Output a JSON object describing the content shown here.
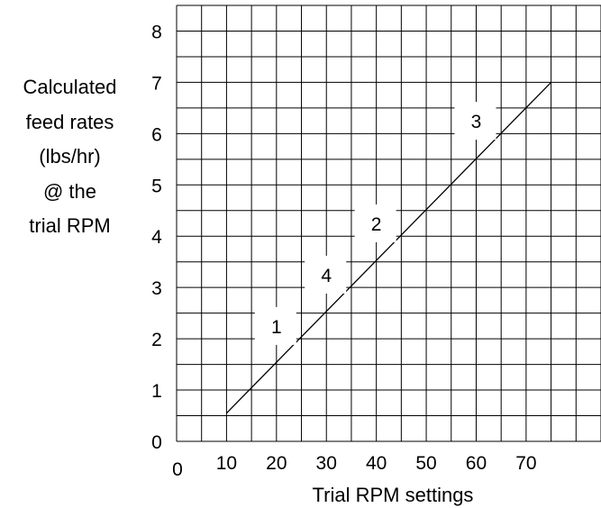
{
  "chart_data": {
    "type": "line",
    "title": "",
    "ylabel_lines": [
      "Calculated",
      "feed rates",
      "(lbs/hr)",
      "@ the",
      "trial RPM"
    ],
    "xlabel": "Trial RPM settings",
    "xlim": [
      0,
      85
    ],
    "ylim": [
      0,
      8.5
    ],
    "x_ticks": [
      "0",
      "10",
      "20",
      "30",
      "40",
      "50",
      "60",
      "70"
    ],
    "y_ticks": [
      "0",
      "1",
      "2",
      "3",
      "4",
      "5",
      "6",
      "7",
      "8"
    ],
    "x_gridlines_every": 5,
    "y_gridlines_every": 0.5,
    "grid": true,
    "line": {
      "x": [
        10,
        75
      ],
      "y": [
        0.55,
        7.0
      ]
    },
    "points": [
      {
        "label": "1",
        "x": 20,
        "y": 2.25
      },
      {
        "label": "4",
        "x": 30,
        "y": 3.25
      },
      {
        "label": "2",
        "x": 40,
        "y": 4.25
      },
      {
        "label": "3",
        "x": 60,
        "y": 6.25
      }
    ]
  }
}
